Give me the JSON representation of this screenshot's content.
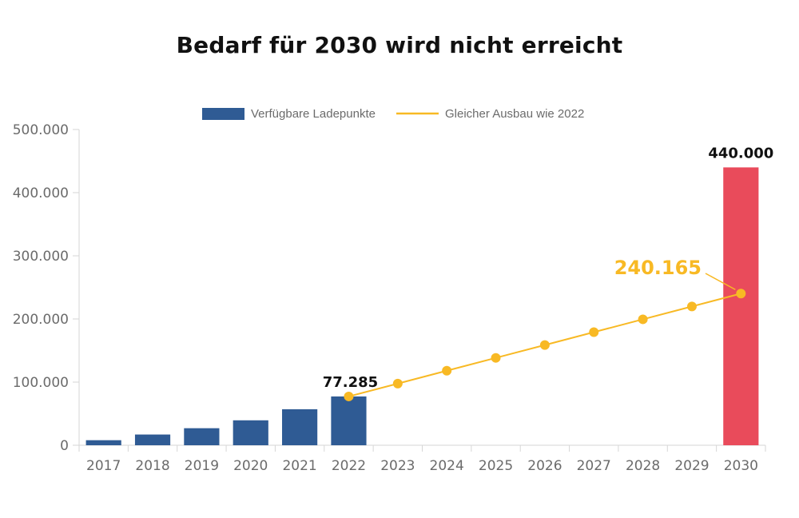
{
  "chart_data": {
    "type": "bar",
    "title": "Bedarf für 2030 wird nicht erreicht",
    "categories": [
      "2017",
      "2018",
      "2019",
      "2020",
      "2021",
      "2022",
      "2023",
      "2024",
      "2025",
      "2026",
      "2027",
      "2028",
      "2029",
      "2030"
    ],
    "ylim": [
      0,
      500000
    ],
    "y_ticks": [
      0,
      100000,
      200000,
      300000,
      400000,
      500000
    ],
    "y_tick_labels": [
      "0",
      "100.000",
      "200.000",
      "300.000",
      "400.000",
      "500.000"
    ],
    "grid": false,
    "legend_position": "top",
    "series": [
      {
        "name": "Verfügbare Ladepunkte",
        "type": "bar",
        "color": "#2f5b94",
        "values": [
          8000,
          17000,
          27000,
          39500,
          57000,
          77285,
          null,
          null,
          null,
          null,
          null,
          null,
          null,
          null
        ]
      },
      {
        "name": "Gleicher Ausbau wie 2022",
        "type": "line",
        "color": "#f8b924",
        "values": [
          null,
          null,
          null,
          null,
          null,
          77285,
          97645,
          118005,
          138365,
          158725,
          179085,
          199445,
          219805,
          240165
        ]
      },
      {
        "type": "bar",
        "color": "#e94b5b",
        "values": [
          null,
          null,
          null,
          null,
          null,
          null,
          null,
          null,
          null,
          null,
          null,
          null,
          null,
          440000
        ]
      }
    ],
    "annotations": [
      {
        "text": "77.285",
        "category": "2022",
        "value": 77285
      },
      {
        "text": "240.165",
        "category": "2030",
        "value": 240165,
        "color": "#f8b924"
      },
      {
        "text": "440.000",
        "category": "2030",
        "value": 440000
      }
    ]
  }
}
